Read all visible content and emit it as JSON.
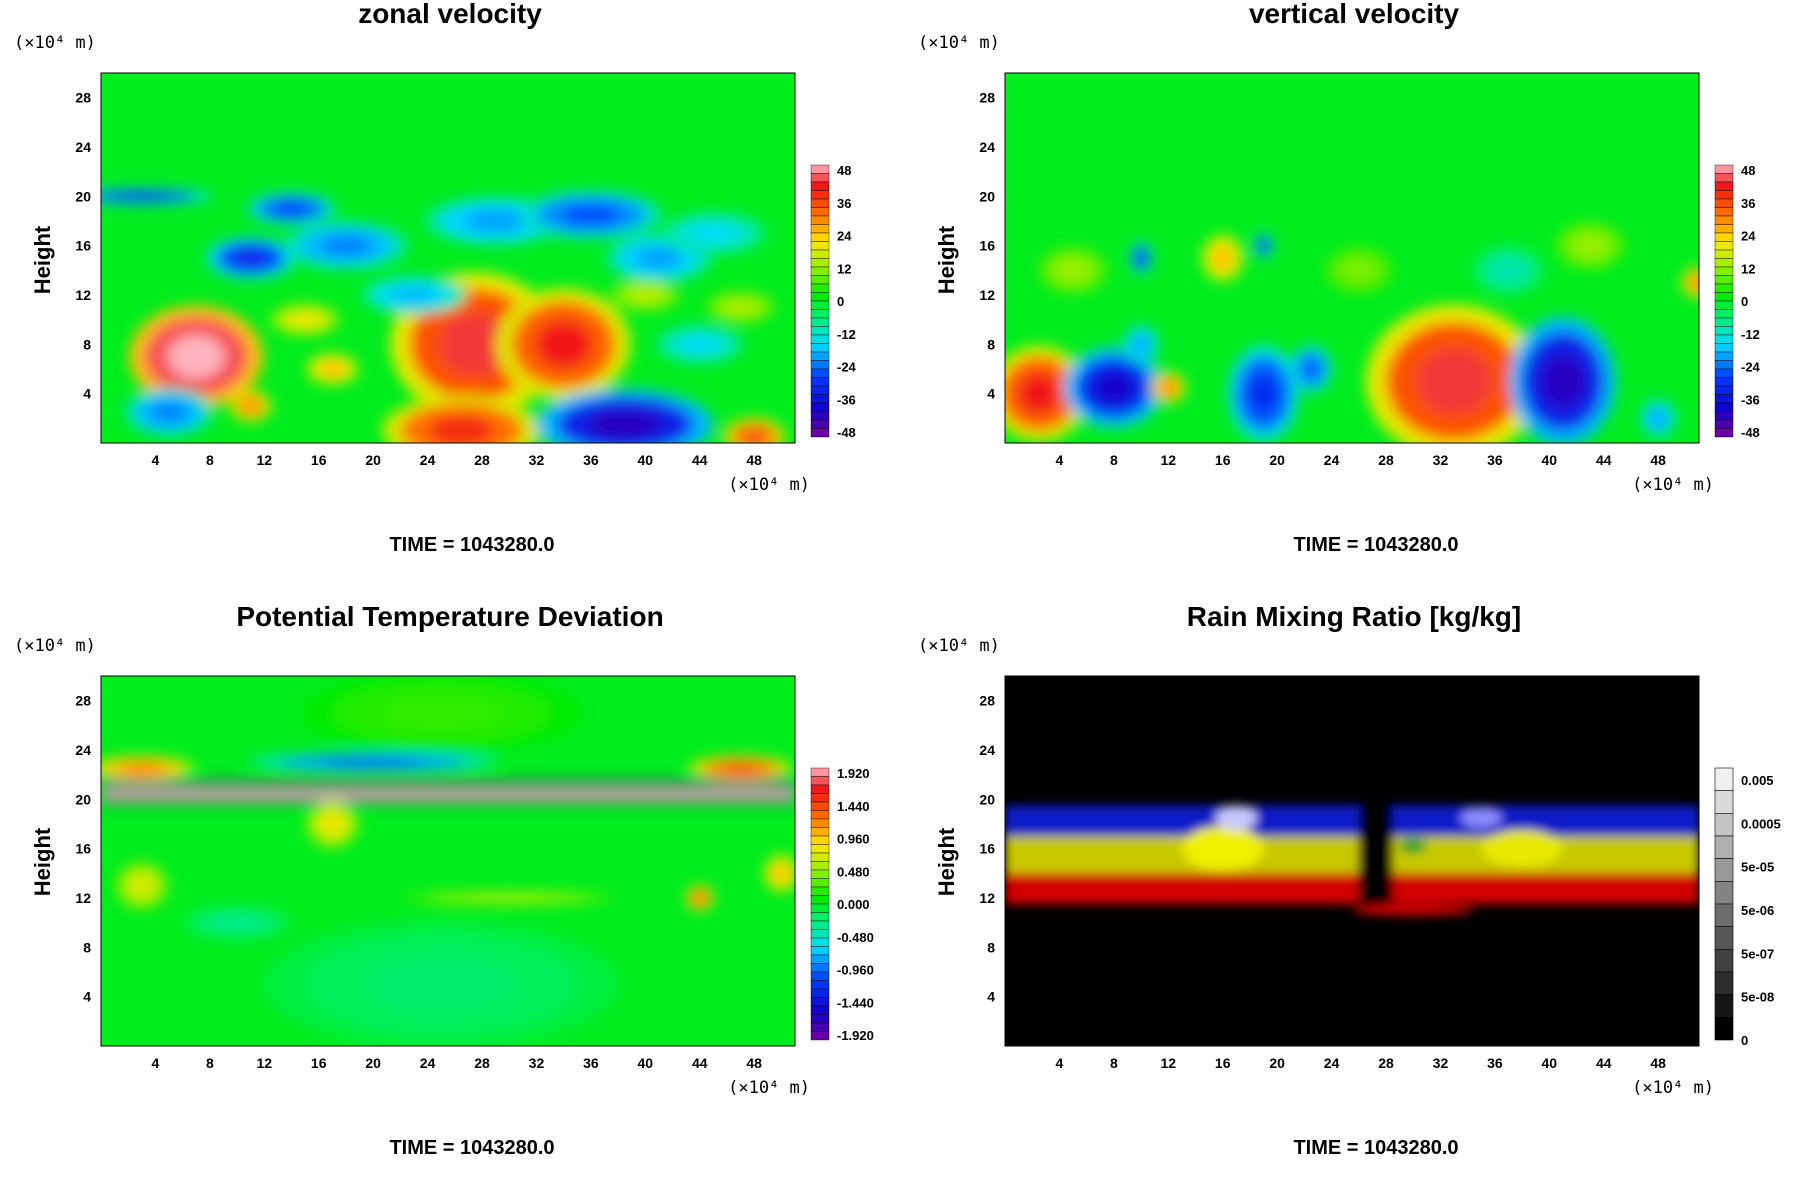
{
  "figure": {
    "panels": [
      {
        "id": "zonal",
        "title": "zonal velocity",
        "y_unit": "(×10⁴ m)",
        "x_unit": "(×10⁴ m)",
        "ylabel": "Height",
        "time_label": "TIME = 1043280.0",
        "palette": "jet",
        "colorbar_labels": [
          "48",
          "36",
          "24",
          "12",
          "0",
          "-12",
          "-24",
          "-36",
          "-48"
        ]
      },
      {
        "id": "vertical",
        "title": "vertical velocity",
        "y_unit": "(×10⁴ m)",
        "x_unit": "(×10⁴ m)",
        "ylabel": "Height",
        "time_label": "TIME = 1043280.0",
        "palette": "jet",
        "colorbar_labels": [
          "48",
          "36",
          "24",
          "12",
          "0",
          "-12",
          "-24",
          "-36",
          "-48"
        ]
      },
      {
        "id": "theta",
        "title": "Potential Temperature Deviation",
        "y_unit": "(×10⁴ m)",
        "x_unit": "(×10⁴ m)",
        "ylabel": "Height",
        "time_label": "TIME = 1043280.0",
        "palette": "jet",
        "colorbar_labels": [
          "1.920",
          "1.440",
          "0.960",
          "0.480",
          "0.000",
          "-0.480",
          "-0.960",
          "-1.440",
          "-1.920"
        ]
      },
      {
        "id": "rain",
        "title": "Rain Mixing Ratio [kg/kg]",
        "y_unit": "(×10⁴ m)",
        "x_unit": "(×10⁴ m)",
        "ylabel": "Height",
        "time_label": "TIME = 1043280.0",
        "palette": "gray",
        "colorbar_labels": [
          "0.005",
          "0.0005",
          "5e-05",
          "5e-06",
          "5e-07",
          "5e-08",
          "0"
        ]
      }
    ]
  },
  "chart_data": [
    {
      "type": "heatmap",
      "title": "zonal velocity",
      "ylabel": "Height",
      "xlabel": "",
      "x_ticks": [
        4,
        8,
        12,
        16,
        20,
        24,
        28,
        32,
        36,
        40,
        44,
        48
      ],
      "y_ticks": [
        4,
        8,
        12,
        16,
        20,
        24,
        28
      ],
      "xlim": [
        0,
        51
      ],
      "ylim": [
        0,
        30
      ],
      "colorbar_levels": [
        48,
        36,
        24,
        12,
        0,
        -12,
        -24,
        -36,
        -48
      ],
      "color_range": [
        -48,
        48
      ],
      "features": [
        {
          "x": 7,
          "y": 7,
          "rx": 3.8,
          "ry": 3.2,
          "value": 54
        },
        {
          "x": 27.5,
          "y": 8,
          "rx": 4.8,
          "ry": 4.5,
          "value": 42
        },
        {
          "x": 34,
          "y": 8,
          "rx": 3.8,
          "ry": 3.5,
          "value": 40
        },
        {
          "x": 26.5,
          "y": 1,
          "rx": 4.5,
          "ry": 2.2,
          "value": 38
        },
        {
          "x": 38.5,
          "y": 1.5,
          "rx": 5,
          "ry": 2.2,
          "value": -40
        },
        {
          "x": 11,
          "y": 3,
          "rx": 1.2,
          "ry": 1,
          "value": 30
        },
        {
          "x": 48,
          "y": 0.5,
          "rx": 1.8,
          "ry": 1.2,
          "value": 35
        },
        {
          "x": 5,
          "y": 2.5,
          "rx": 2.5,
          "ry": 1.5,
          "value": -22
        },
        {
          "x": 3,
          "y": 20,
          "rx": 4,
          "ry": 0.5,
          "value": -30
        },
        {
          "x": 14,
          "y": 19,
          "rx": 2.5,
          "ry": 1,
          "value": -28
        },
        {
          "x": 11,
          "y": 15,
          "rx": 2.5,
          "ry": 1.3,
          "value": -32
        },
        {
          "x": 18,
          "y": 16,
          "rx": 3.5,
          "ry": 1.5,
          "value": -22
        },
        {
          "x": 29,
          "y": 18,
          "rx": 4,
          "ry": 1.5,
          "value": -20
        },
        {
          "x": 36,
          "y": 18.5,
          "rx": 4,
          "ry": 1.5,
          "value": -26
        },
        {
          "x": 41,
          "y": 15,
          "rx": 3,
          "ry": 1.5,
          "value": -20
        },
        {
          "x": 23,
          "y": 12,
          "rx": 3,
          "ry": 1.2,
          "value": -18
        },
        {
          "x": 45,
          "y": 17,
          "rx": 3,
          "ry": 1.3,
          "value": -15
        },
        {
          "x": 15,
          "y": 10,
          "rx": 2,
          "ry": 1,
          "value": 20
        },
        {
          "x": 17,
          "y": 6,
          "rx": 1.5,
          "ry": 1,
          "value": 25
        },
        {
          "x": 40,
          "y": 12,
          "rx": 2,
          "ry": 1,
          "value": 15
        },
        {
          "x": 44,
          "y": 8,
          "rx": 2.5,
          "ry": 1.2,
          "value": -15
        },
        {
          "x": 47,
          "y": 11,
          "rx": 2,
          "ry": 1,
          "value": 14
        }
      ]
    },
    {
      "type": "heatmap",
      "title": "vertical velocity",
      "ylabel": "Height",
      "xlabel": "",
      "x_ticks": [
        4,
        8,
        12,
        16,
        20,
        24,
        28,
        32,
        36,
        40,
        44,
        48
      ],
      "y_ticks": [
        4,
        8,
        12,
        16,
        20,
        24,
        28
      ],
      "xlim": [
        0,
        51
      ],
      "ylim": [
        0,
        30
      ],
      "colorbar_levels": [
        48,
        36,
        24,
        12,
        0,
        -12,
        -24,
        -36,
        -48
      ],
      "color_range": [
        -48,
        48
      ],
      "features": [
        {
          "x": 2.5,
          "y": 4,
          "rx": 2.8,
          "ry": 3,
          "value": 40
        },
        {
          "x": 8,
          "y": 4.5,
          "rx": 2.8,
          "ry": 2.5,
          "value": -38
        },
        {
          "x": 12,
          "y": 4.5,
          "rx": 1,
          "ry": 1,
          "value": 30
        },
        {
          "x": 19,
          "y": 4,
          "rx": 2,
          "ry": 3,
          "value": -30
        },
        {
          "x": 22.5,
          "y": 6,
          "rx": 1.2,
          "ry": 1.5,
          "value": -25
        },
        {
          "x": 33,
          "y": 5,
          "rx": 5,
          "ry": 4.8,
          "value": 42
        },
        {
          "x": 41,
          "y": 5,
          "rx": 3,
          "ry": 4,
          "value": -40
        },
        {
          "x": 48,
          "y": 2,
          "rx": 1,
          "ry": 1.2,
          "value": -20
        },
        {
          "x": 10,
          "y": 8,
          "rx": 1,
          "ry": 1.2,
          "value": -20
        },
        {
          "x": 16,
          "y": 15,
          "rx": 1.2,
          "ry": 1.5,
          "value": 25
        },
        {
          "x": 10,
          "y": 15,
          "rx": 0.6,
          "ry": 1,
          "value": -30
        },
        {
          "x": 19,
          "y": 16,
          "rx": 0.5,
          "ry": 0.8,
          "value": -30
        },
        {
          "x": 51,
          "y": 13,
          "rx": 1,
          "ry": 1,
          "value": 30
        },
        {
          "x": 26,
          "y": 14,
          "rx": 2,
          "ry": 1.5,
          "value": 10
        },
        {
          "x": 37,
          "y": 14,
          "rx": 2,
          "ry": 1.5,
          "value": -10
        },
        {
          "x": 5,
          "y": 14,
          "rx": 2,
          "ry": 1.5,
          "value": 12
        },
        {
          "x": 43,
          "y": 16,
          "rx": 2,
          "ry": 1.5,
          "value": 12
        }
      ]
    },
    {
      "type": "heatmap",
      "title": "Potential Temperature Deviation",
      "ylabel": "Height",
      "xlabel": "",
      "x_ticks": [
        4,
        8,
        12,
        16,
        20,
        24,
        28,
        32,
        36,
        40,
        44,
        48
      ],
      "y_ticks": [
        4,
        8,
        12,
        16,
        20,
        24,
        28
      ],
      "xlim": [
        0,
        51
      ],
      "ylim": [
        0,
        30
      ],
      "colorbar_levels": [
        1.92,
        1.44,
        0.96,
        0.48,
        0.0,
        -0.48,
        -0.96,
        -1.44,
        -1.92
      ],
      "color_range": [
        -1.92,
        1.92
      ],
      "features": [
        {
          "x": 25,
          "y": 27,
          "rx": 8,
          "ry": 2.5,
          "value": 0.2
        },
        {
          "x": 3,
          "y": 22.5,
          "rx": 3,
          "ry": 0.8,
          "value": 1.2
        },
        {
          "x": 20,
          "y": 23,
          "rx": 7,
          "ry": 0.6,
          "value": -1.0
        },
        {
          "x": 47,
          "y": 22.5,
          "rx": 3,
          "ry": 0.8,
          "value": 1.4
        },
        {
          "x": 17,
          "y": 18,
          "rx": 1.5,
          "ry": 1.5,
          "value": 0.8
        },
        {
          "x": 3,
          "y": 13,
          "rx": 1.5,
          "ry": 1.5,
          "value": 0.7
        },
        {
          "x": 44,
          "y": 12,
          "rx": 0.8,
          "ry": 0.8,
          "value": 1.3
        },
        {
          "x": 50,
          "y": 14,
          "rx": 1,
          "ry": 1.2,
          "value": 1.0
        },
        {
          "x": 30,
          "y": 12,
          "rx": 6,
          "ry": 0.4,
          "value": 0.6
        },
        {
          "x": 10,
          "y": 10,
          "rx": 3,
          "ry": 1,
          "value": -0.3
        },
        {
          "x": 25,
          "y": 5,
          "rx": 10,
          "ry": 4,
          "value": -0.2
        }
      ],
      "bands": [
        {
          "y": 21.2,
          "h": 0.5,
          "value": -1.92
        },
        {
          "y": 20.4,
          "h": 0.6,
          "value": 1.92
        },
        {
          "y": 19.9,
          "h": 0.4,
          "value": -1.92
        }
      ]
    },
    {
      "type": "heatmap",
      "title": "Rain Mixing Ratio [kg/kg]",
      "ylabel": "Height",
      "xlabel": "",
      "x_ticks": [
        4,
        8,
        12,
        16,
        20,
        24,
        28,
        32,
        36,
        40,
        44,
        48
      ],
      "y_ticks": [
        4,
        8,
        12,
        16,
        20,
        24,
        28
      ],
      "xlim": [
        0,
        51
      ],
      "ylim": [
        0,
        30
      ],
      "colorbar_levels": [
        "0.005",
        "0.0005",
        "5e-05",
        "5e-06",
        "5e-07",
        "5e-08",
        "0"
      ],
      "layers": [
        {
          "name": "blue",
          "color": "#0a1ec8",
          "y0": 17,
          "y1": 19.5
        },
        {
          "name": "yellow",
          "color": "#c8c800",
          "y0": 14,
          "y1": 17
        },
        {
          "name": "red",
          "color": "#d20000",
          "y0": 11.5,
          "y1": 14
        }
      ],
      "features": [
        {
          "x": 16,
          "y": 16,
          "rx": 3,
          "ry": 1.8,
          "color": "#f0f000"
        },
        {
          "x": 38,
          "y": 16,
          "rx": 3,
          "ry": 1.5,
          "color": "#e8e800"
        },
        {
          "x": 17,
          "y": 18.5,
          "rx": 1.5,
          "ry": 1,
          "color": "#c8c8ff"
        },
        {
          "x": 35,
          "y": 18.5,
          "rx": 1.5,
          "ry": 0.8,
          "color": "#8c8cff"
        },
        {
          "x": 30,
          "y": 11,
          "rx": 4.5,
          "ry": 0.4,
          "color": "#e00000"
        },
        {
          "x": 30,
          "y": 16.2,
          "rx": 1,
          "ry": 0.6,
          "color": "#2ca02c"
        }
      ],
      "gaps": [
        {
          "x0": 26,
          "x1": 28.5
        }
      ]
    }
  ]
}
